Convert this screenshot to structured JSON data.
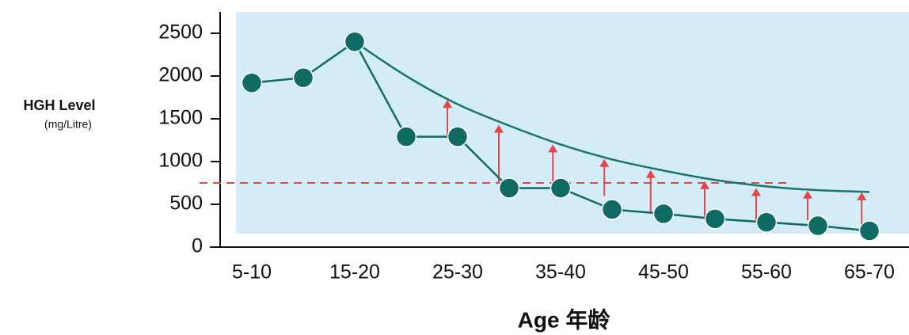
{
  "chart_data": {
    "type": "line",
    "y_label": "HGH Level",
    "y_unit": "(mg/Litre)",
    "x_label": "Age 年龄",
    "categories": [
      "5-10",
      null,
      "15-20",
      null,
      "25-30",
      null,
      "35-40",
      null,
      "45-50",
      null,
      "55-60",
      null,
      "65-70"
    ],
    "series": [
      {
        "color": "#0f6b63",
        "values": [
          1920,
          1980,
          2400,
          1290,
          1290,
          690,
          690,
          440,
          390,
          330,
          290,
          250,
          190
        ]
      },
      {
        "color": "#17776e",
        "values": [
          null,
          null,
          2400,
          2000,
          1670,
          1420,
          1200,
          1025,
          895,
          785,
          710,
          665,
          645
        ]
      }
    ],
    "arrows": {
      "color": "#e0474c",
      "x": [
        3.8,
        4.8,
        5.85,
        6.85,
        7.75,
        8.8,
        9.8,
        10.8,
        11.85
      ],
      "from": [
        1290,
        760,
        690,
        600,
        400,
        350,
        300,
        315,
        200
      ],
      "to": [
        1720,
        1430,
        1200,
        1030,
        900,
        770,
        690,
        660,
        640
      ]
    },
    "reference_line": 750,
    "ylim": [
      0,
      2750
    ],
    "yticks": [
      0,
      500,
      1000,
      1500,
      2000,
      2500
    ]
  }
}
